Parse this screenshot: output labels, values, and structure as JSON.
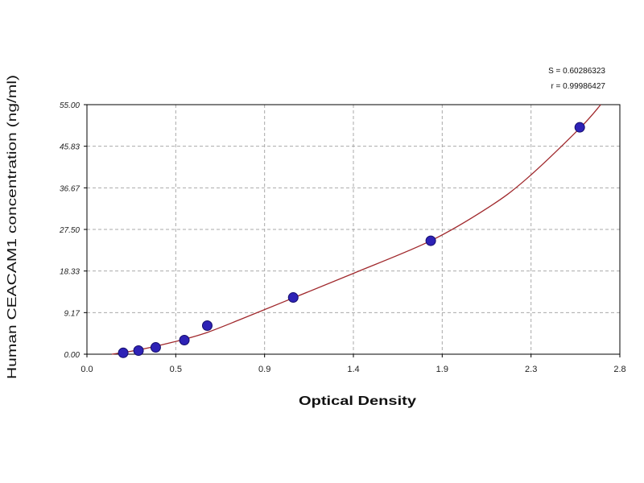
{
  "chart_data": {
    "type": "scatter",
    "xlabel": "Optical Density",
    "ylabel": "Human CEACAM1 concentration (ng/ml)",
    "xlim": [
      0,
      2.79
    ],
    "ylim": [
      0,
      55
    ],
    "x_tick_labels": [
      "0.0",
      "0.5",
      "0.9",
      "1.4",
      "1.9",
      "2.3",
      "2.8"
    ],
    "y_tick_labels": [
      "0.00",
      "9.17",
      "18.33",
      "27.50",
      "36.67",
      "45.83",
      "55.00"
    ],
    "grid": true,
    "series": [
      {
        "x": [
          0.19,
          0.27,
          0.36,
          0.51,
          0.63,
          1.08,
          1.8,
          2.58
        ],
        "y": [
          0.3,
          0.8,
          1.5,
          3.1,
          6.3,
          12.5,
          25.0,
          50.0
        ],
        "color": "#2e22b6"
      }
    ],
    "fit_curve": {
      "x": [
        0.13,
        0.19,
        0.27,
        0.36,
        0.51,
        0.63,
        0.8,
        1.08,
        1.4,
        1.8,
        2.1,
        2.3,
        2.58,
        2.69
      ],
      "y": [
        0.0,
        0.35,
        0.95,
        1.75,
        3.3,
        4.8,
        7.6,
        12.4,
        17.9,
        25.0,
        32.3,
        38.6,
        49.8,
        55.0
      ],
      "color": "#a0282c"
    },
    "annotations": [
      "S = 0.60286323",
      "r = 0.99986427"
    ]
  }
}
